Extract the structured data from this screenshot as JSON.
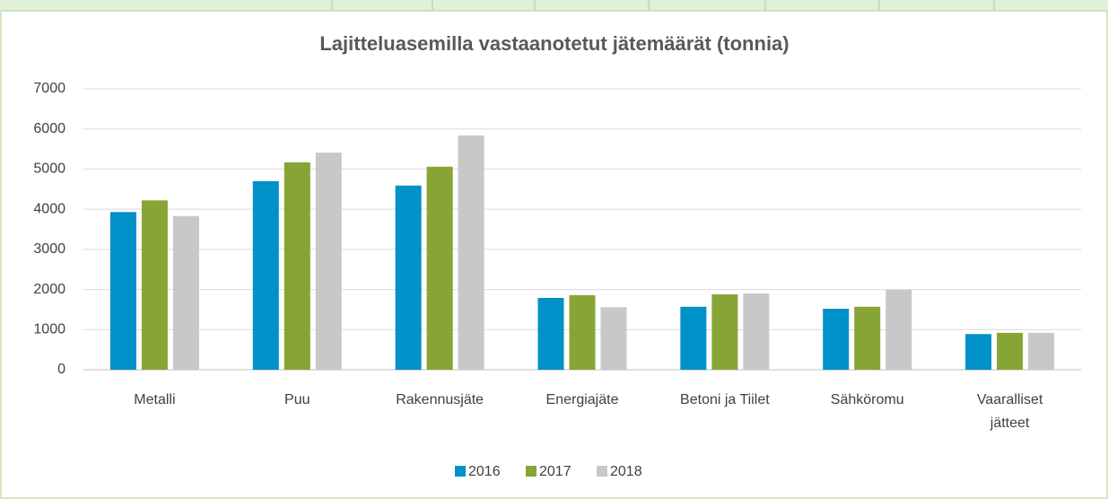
{
  "chart_data": {
    "type": "bar",
    "title": "Lajitteluasemilla vastaanotetut jätemäärät (tonnia)",
    "categories": [
      "Metalli",
      "Puu",
      "Rakennusjäte",
      "Energiajäte",
      "Betoni ja Tiilet",
      "Sähköromu",
      "Vaaralliset jätteet"
    ],
    "series": [
      {
        "name": "2016",
        "color": "#0091c8",
        "values": [
          3930,
          4700,
          4590,
          1790,
          1570,
          1520,
          890
        ]
      },
      {
        "name": "2017",
        "color": "#86a534",
        "values": [
          4220,
          5170,
          5060,
          1860,
          1880,
          1570,
          920
        ]
      },
      {
        "name": "2018",
        "color": "#c8c8c8",
        "values": [
          3830,
          5410,
          5840,
          1560,
          1900,
          1990,
          920
        ]
      }
    ],
    "ylim": [
      0,
      7000
    ],
    "yticks": [
      0,
      1000,
      2000,
      3000,
      4000,
      5000,
      6000,
      7000
    ],
    "grid": true,
    "legend": "bottom"
  }
}
